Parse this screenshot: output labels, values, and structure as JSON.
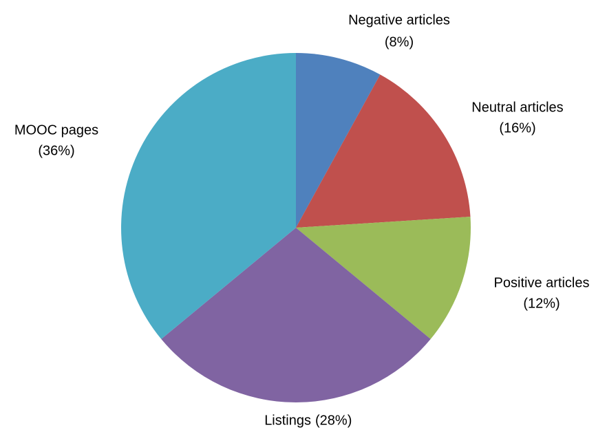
{
  "chart_data": {
    "type": "pie",
    "categories": [
      "Negative articles",
      "Neutral articles",
      "Positive articles",
      "Listings",
      "MOOC pages"
    ],
    "values": [
      8,
      16,
      12,
      28,
      36
    ],
    "value_labels": [
      "(8%)",
      "(16%)",
      "(12%)",
      "(28%)",
      "(36%)"
    ],
    "colors": [
      "#4f81bd",
      "#c0504d",
      "#9bbb59",
      "#8064a2",
      "#4bacc6"
    ]
  }
}
